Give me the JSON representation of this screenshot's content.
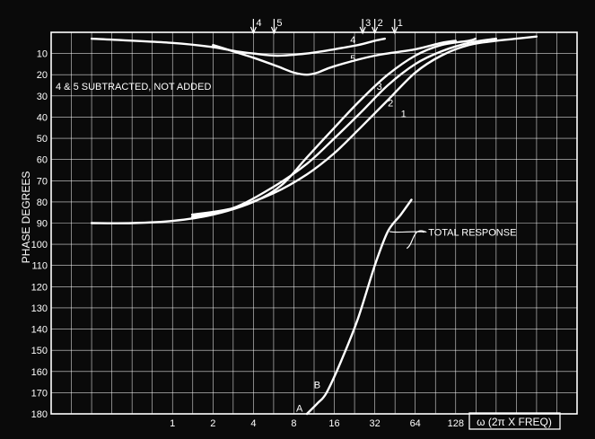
{
  "colors": {
    "background": "#0a0a0a",
    "ink": "#ffffff",
    "frame": "#ffffff"
  },
  "chart_data": {
    "type": "line",
    "title": "",
    "ylabel": "PHASE DEGREES",
    "xlabel": "ω (2π X FREQ)",
    "x_scale": "log2",
    "xlim": [
      0.125,
      1024
    ],
    "ylim": [
      0,
      180
    ],
    "y_inverted": true,
    "grid": true,
    "x_ticks": [
      {
        "value": 1,
        "label": "1"
      },
      {
        "value": 2,
        "label": "2"
      },
      {
        "value": 4,
        "label": "4"
      },
      {
        "value": 8,
        "label": "8"
      },
      {
        "value": 16,
        "label": "16"
      },
      {
        "value": 32,
        "label": "32"
      },
      {
        "value": 64,
        "label": "64"
      },
      {
        "value": 128,
        "label": "128"
      }
    ],
    "y_ticks": [
      "10",
      "20",
      "30",
      "40",
      "50",
      "60",
      "70",
      "80",
      "90",
      "100",
      "110",
      "120",
      "130",
      "140",
      "150",
      "160",
      "170",
      "180"
    ],
    "note": "4 & 5 SUBTRACTED, NOT ADDED",
    "top_markers": [
      {
        "label": "4",
        "x": 4
      },
      {
        "label": "5",
        "x": 5.7
      },
      {
        "label": "3",
        "x": 26
      },
      {
        "label": "2",
        "x": 32
      },
      {
        "label": "1",
        "x": 45
      }
    ],
    "series": [
      {
        "name": "1",
        "label_at": {
          "x": 50,
          "y": 40
        },
        "points": [
          [
            1.4,
            86
          ],
          [
            2.8,
            83
          ],
          [
            5.6,
            76
          ],
          [
            10,
            67
          ],
          [
            16,
            57
          ],
          [
            25,
            45
          ],
          [
            40,
            32
          ],
          [
            64,
            19
          ],
          [
            100,
            11
          ],
          [
            160,
            6
          ],
          [
            256,
            4
          ],
          [
            362,
            3
          ],
          [
            512,
            2
          ]
        ]
      },
      {
        "name": "2",
        "label_at": {
          "x": 40,
          "y": 35
        },
        "points": [
          [
            1.4,
            87
          ],
          [
            2.8,
            83
          ],
          [
            5.6,
            73
          ],
          [
            10,
            62
          ],
          [
            16,
            50
          ],
          [
            25,
            38
          ],
          [
            40,
            25
          ],
          [
            64,
            15
          ],
          [
            100,
            9
          ],
          [
            160,
            5
          ],
          [
            256,
            3
          ]
        ]
      },
      {
        "name": "3",
        "label_at": {
          "x": 33,
          "y": 27
        },
        "points": [
          [
            0.25,
            90
          ],
          [
            0.5,
            90
          ],
          [
            1,
            89
          ],
          [
            2,
            86
          ],
          [
            4,
            80
          ],
          [
            6.5,
            72
          ],
          [
            10,
            59
          ],
          [
            16,
            45
          ],
          [
            25,
            32
          ],
          [
            40,
            20
          ],
          [
            64,
            11
          ],
          [
            100,
            6
          ],
          [
            160,
            4
          ],
          [
            180,
            3
          ]
        ]
      },
      {
        "name": "4",
        "label_at": {
          "x": 21,
          "y": 5
        },
        "points": [
          [
            0.25,
            3
          ],
          [
            1,
            5
          ],
          [
            2,
            7
          ],
          [
            3,
            9
          ],
          [
            4,
            10
          ],
          [
            6,
            11
          ],
          [
            10,
            10
          ],
          [
            16,
            8
          ],
          [
            24,
            6
          ],
          [
            32,
            4
          ],
          [
            38,
            3
          ]
        ]
      },
      {
        "name": "5",
        "label_at": {
          "x": 21,
          "y": 14
        },
        "points": [
          [
            2,
            6
          ],
          [
            4,
            12
          ],
          [
            6,
            16
          ],
          [
            8,
            19
          ],
          [
            10,
            20
          ],
          [
            12,
            19
          ],
          [
            16,
            16
          ],
          [
            32,
            11
          ],
          [
            64,
            8
          ],
          [
            100,
            5
          ],
          [
            128,
            4
          ]
        ]
      },
      {
        "name": "TOTAL RESPONSE",
        "label_at": {
          "x": 80,
          "y": 96
        },
        "points": [
          [
            10,
            180
          ],
          [
            12,
            175
          ],
          [
            14,
            170
          ],
          [
            18,
            155
          ],
          [
            24,
            135
          ],
          [
            32,
            110
          ],
          [
            40,
            94
          ],
          [
            50,
            86
          ],
          [
            60,
            79
          ]
        ]
      }
    ],
    "point_labels": [
      {
        "label": "A",
        "x": 9.6,
        "y": 178
      },
      {
        "label": "B",
        "x": 13,
        "y": 167
      }
    ]
  }
}
